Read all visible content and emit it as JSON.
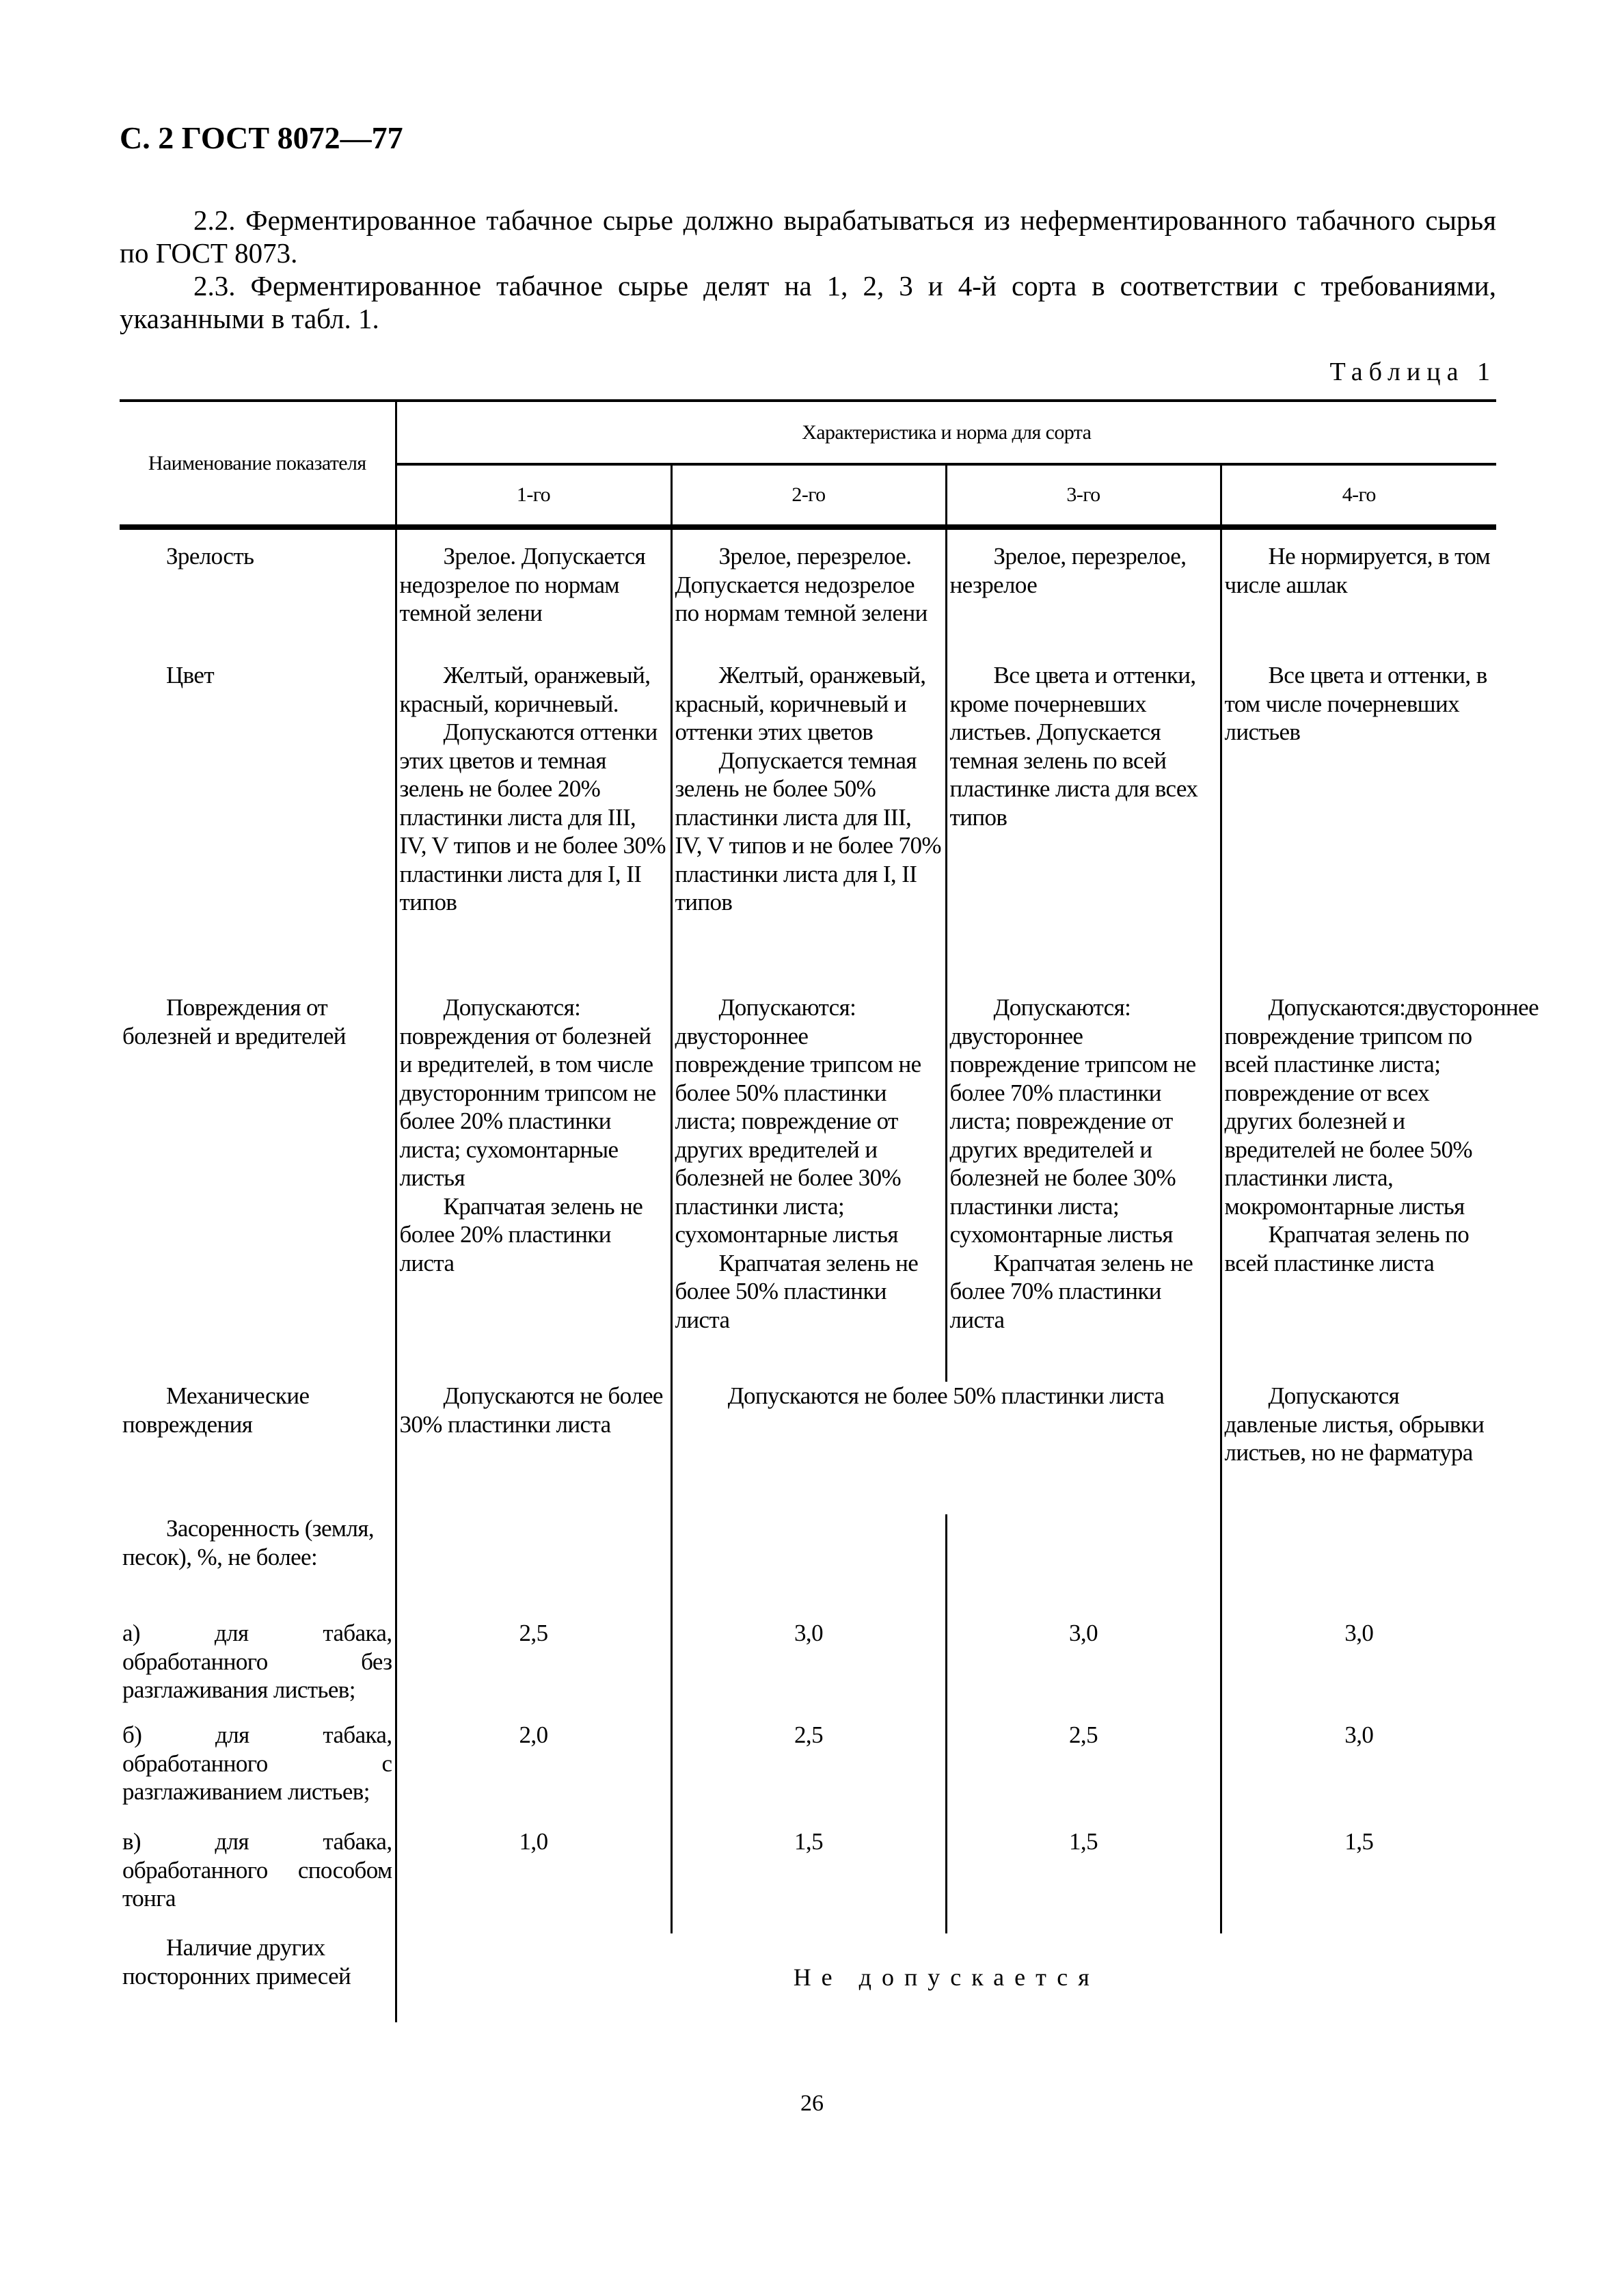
{
  "header": "С. 2 ГОСТ 8072—77",
  "paragraphs": [
    "2.2. Ферментированное табачное сырье должно вырабатываться из неферментированного табачного сырья по ГОСТ 8073.",
    "2.3. Ферментированное табачное сырье делят на 1, 2, 3 и 4-й сорта в соответствии с требованиями, указанными в табл. 1."
  ],
  "table_caption": "Таблица 1",
  "table": {
    "col_name": "Наименование показателя",
    "group_header": "Характеристика и норма для сорта",
    "grades": [
      "1-го",
      "2-го",
      "3-го",
      "4-го"
    ],
    "rows": [
      {
        "name": "Зрелость",
        "cells": [
          [
            "Зрелое. Допускается недозрелое по нормам темной зелени"
          ],
          [
            "Зрелое, перезрелое. Допускается недозрелое по нормам темной зелени"
          ],
          [
            "Зрелое, перезрелое, незрелое"
          ],
          [
            "Не нормируется, в том числе ашлак"
          ]
        ]
      },
      {
        "name": "Цвет",
        "cells": [
          [
            "Желтый, оранжевый, красный, коричневый.",
            "Допускаются оттенки этих цветов и темная зелень не более 20% пластинки листа для III, IV, V типов и не более 30% пластинки листа для I, II типов"
          ],
          [
            "Желтый, оранжевый, красный, коричневый и оттенки этих цветов",
            "Допускается темная зелень не более 50% пластинки листа для III, IV, V типов и не более 70% пластинки листа для I, II типов"
          ],
          [
            "Все цвета и оттенки, кроме почерневших листьев. Допускается темная зелень по всей пластинке листа для всех типов"
          ],
          [
            "Все цвета и оттенки, в том числе почерневших листьев"
          ]
        ]
      },
      {
        "name": "Повреждения от болезней и вредителей",
        "cells": [
          [
            "Допускаются: повреждения от болезней и вредителей, в том числе двусторонним трипсом не более 20% пластинки листа; сухомонтарные листья",
            "Крапчатая зелень не более 20% пластинки листа"
          ],
          [
            "Допускаются: двустороннее повреждение трипсом не более 50% пластинки листа; повреждение от других вредителей и болезней не более 30% пластинки листа; сухомонтарные листья",
            "Крапчатая зелень не более 50% пластинки листа"
          ],
          [
            "Допускаются: двустороннее повреждение трипсом не более 70% пластинки листа; повреждение от других вредителей и болезней не более 30% пластинки листа; сухомонтарные листья",
            "Крапчатая зелень не более 70% пластинки листа"
          ],
          [
            "Допускаются:двустороннее повреждение трипсом по всей пластинке листа; повреждение от всех других болезней и вредителей не более 50% пластинки листа, мокромонтарные листья",
            "Крапчатая зелень по всей пластинке листа"
          ]
        ]
      }
    ],
    "mech": {
      "name": "Механические повреждения",
      "g1": "Допускаются не более 30% пластинки листа",
      "g23": "Допускаются не более 50% пластинки листа",
      "g4": "Допускаются давленые листья, обрывки листьев, но не фарматура"
    },
    "debris": {
      "name": "Засоренность (земля, песок), %, не более:",
      "rows": [
        {
          "name": "а) для табака, обработанного без разглаживания листьев;",
          "values": [
            "2,5",
            "3,0",
            "3,0",
            "3,0"
          ]
        },
        {
          "name": "б) для табака, обработанного с разглаживанием листьев;",
          "values": [
            "2,0",
            "2,5",
            "2,5",
            "3,0"
          ]
        },
        {
          "name": "в) для табака, обработанного способом тонга",
          "values": [
            "1,0",
            "1,5",
            "1,5",
            "1,5"
          ]
        }
      ]
    },
    "other": {
      "name": "Наличие других посторонних примесей",
      "value": "Не допускается"
    }
  },
  "page_number": "26"
}
